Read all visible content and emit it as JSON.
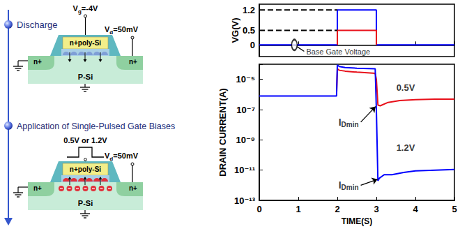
{
  "diagram": {
    "steps": [
      {
        "title": "Discharge",
        "gate": {
          "text": "V",
          "subscript": "g",
          "rest": "=-4V"
        },
        "drain": {
          "text": "V",
          "subscript": "d",
          "rest": "=50mV"
        },
        "gate_material": "n+poly-Si",
        "source_region": "n+",
        "drain_region": "n+",
        "substrate": "P-Si"
      },
      {
        "title": "Application of Single-Pulsed Gate Biases",
        "pulse": "0.5V or 1.2V",
        "drain": {
          "text": "V",
          "subscript": "d",
          "rest": "=50mV"
        },
        "gate_material": "n+poly-Si",
        "source_region": "n+",
        "drain_region": "n+",
        "substrate": "P-Si"
      }
    ]
  },
  "chart_data": [
    {
      "type": "line",
      "ylabel": "VG(V)",
      "xlim": [
        0,
        5
      ],
      "xticks": [
        0,
        1,
        2,
        3,
        4,
        5
      ],
      "ylim": [
        -0.4,
        1.4
      ],
      "yticks": [
        0,
        0.5,
        1.2
      ],
      "tick_labels": "y",
      "grid": false,
      "series": [
        {
          "color": "#0000ff",
          "line_style": "solid",
          "x": [
            0,
            2,
            2,
            3,
            3,
            5
          ],
          "values": [
            0,
            0,
            1.2,
            1.2,
            0,
            0
          ]
        },
        {
          "color": "#e8101a",
          "line_style": "solid",
          "x": [
            2,
            2,
            3,
            3
          ],
          "values": [
            0,
            0.5,
            0.5,
            0
          ]
        },
        {
          "color": "#000000",
          "line_style": "dashed",
          "x": [
            0,
            2
          ],
          "values": [
            1.2,
            1.2
          ]
        },
        {
          "color": "#000000",
          "line_style": "dashed",
          "x": [
            0,
            2
          ],
          "values": [
            0.5,
            0.5
          ]
        }
      ],
      "annotations": [
        {
          "text": "Base Gate Voltage",
          "xy": [
            0.9,
            0
          ],
          "xytext": [
            1.15,
            -0.22
          ],
          "marker": "ellipse"
        }
      ]
    },
    {
      "type": "line",
      "log": "y",
      "xlabel": "TIME(S)",
      "ylabel": "DRAIN CURRENT(A)",
      "xlim": [
        0,
        5
      ],
      "xticks": [
        0,
        1,
        2,
        3,
        4,
        5
      ],
      "ylim": [
        1e-13,
        0.0001
      ],
      "yticks": [
        {
          "value": 1e-13,
          "label": "10⁻¹³"
        },
        {
          "value": 1e-11,
          "label": "10⁻¹¹"
        },
        {
          "value": 1e-09,
          "label": "10⁻⁹"
        },
        {
          "value": 1e-07,
          "label": "10⁻⁷"
        },
        {
          "value": 1e-05,
          "label": "10⁻⁵"
        }
      ],
      "grid": false,
      "series": [
        {
          "color": "#e8101a",
          "line_style": "solid",
          "x": [
            1.98,
            2.0,
            2.05,
            2.2,
            2.5,
            2.97,
            3.0,
            3.04,
            3.1,
            3.3,
            3.6,
            4.0,
            4.5,
            5.0
          ],
          "values": [
            8e-07,
            5e-05,
            4e-05,
            3.5e-05,
            3e-05,
            2.5e-05,
            1e-05,
            2e-07,
            1.8e-07,
            3e-07,
            4e-07,
            4.5e-07,
            5e-07,
            5e-07
          ]
        },
        {
          "color": "#0000ff",
          "line_style": "solid",
          "x": [
            0,
            1.98,
            2.0,
            2.05,
            2.2,
            2.5,
            2.97,
            3.0,
            3.04,
            3.08,
            3.2,
            3.4,
            3.7,
            4.0,
            4.5,
            5.0
          ],
          "values": [
            8e-07,
            8e-07,
            9e-05,
            7e-05,
            6e-05,
            5.5e-05,
            5e-05,
            1e-07,
            2e-12,
            3e-12,
            5e-12,
            5e-12,
            7e-12,
            9e-12,
            1e-11,
            1.1e-11
          ]
        }
      ],
      "annotations": [
        {
          "text": "0.5V",
          "xy": [
            3.75,
            3e-06
          ]
        },
        {
          "text": "1.2V",
          "xy": [
            3.75,
            3e-10
          ]
        },
        {
          "text": "I",
          "subscript": "Dmin",
          "xy": [
            2.98,
            1.6e-07
          ],
          "xytext": [
            2.6,
            1.5e-08
          ]
        },
        {
          "text": "I",
          "subscript": "Dmin",
          "xy": [
            3.03,
            2.5e-12
          ],
          "xytext": [
            2.6,
            1e-12
          ]
        }
      ]
    }
  ]
}
